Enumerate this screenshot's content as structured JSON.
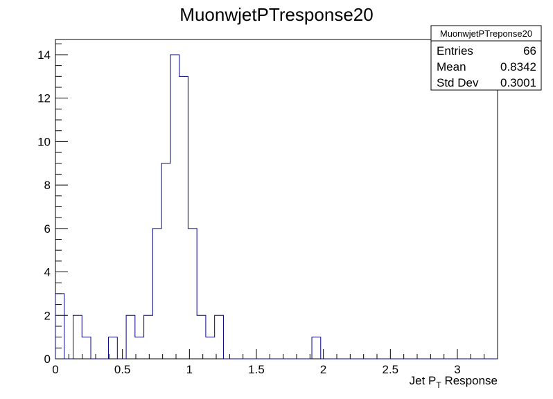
{
  "chart_data": {
    "type": "bar",
    "title": "MuonwjetPTresponse20",
    "xlabel": "Jet P",
    "xlabel_sub": "T",
    "xlabel_suffix": " Response",
    "ylabel": "",
    "xlim": [
      0,
      3.3
    ],
    "ylim": [
      0,
      14.7
    ],
    "grid": false,
    "bin_width": 0.066,
    "bin_edges_start": 0,
    "values": [
      3,
      0,
      2,
      1,
      0,
      0,
      1,
      0,
      2,
      1,
      2,
      6,
      9,
      14,
      13,
      6,
      2,
      1,
      2,
      0,
      0,
      0,
      0,
      0,
      0,
      0,
      0,
      0,
      0,
      1,
      0,
      0,
      0,
      0,
      0,
      0,
      0,
      0,
      0,
      0,
      0,
      0,
      0,
      0,
      0,
      0,
      0,
      0,
      0,
      0
    ],
    "x_ticks": [
      0,
      0.5,
      1,
      1.5,
      2,
      2.5,
      3
    ],
    "x_tick_labels": [
      "0",
      "0.5",
      "1",
      "1.5",
      "2",
      "2.5",
      "3"
    ],
    "y_ticks": [
      0,
      2,
      4,
      6,
      8,
      10,
      12,
      14
    ],
    "y_tick_labels": [
      "0",
      "2",
      "4",
      "6",
      "8",
      "10",
      "12",
      "14"
    ],
    "line_color": "#000080",
    "stats_box": {
      "title": "MuonwjetPTreponse20",
      "entries_label": "Entries",
      "entries_value": "66",
      "mean_label": "Mean",
      "mean_value": "0.8342",
      "stddev_label": "Std Dev",
      "stddev_value": "0.3001"
    }
  }
}
